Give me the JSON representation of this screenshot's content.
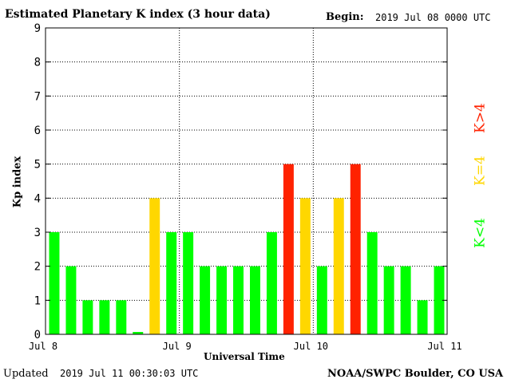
{
  "header": {
    "title": "Estimated Planetary K index (3 hour data)",
    "begin_label": "Begin:",
    "begin_value": "2019 Jul 08 0000 UTC"
  },
  "footer": {
    "updated_label": "Updated",
    "updated_value": "2019 Jul 11 00:30:03 UTC",
    "credit": "NOAA/SWPC Boulder, CO USA"
  },
  "legend": {
    "low": "K<4",
    "mid": "K=4",
    "high": "K>4"
  },
  "colors": {
    "low": "#00ff00",
    "mid": "#ffd700",
    "high": "#ff2200"
  },
  "chart_data": {
    "type": "bar",
    "title": "Estimated Planetary K index (3 hour data)",
    "xlabel": "Universal Time",
    "ylabel": "Kp index",
    "ylim": [
      0,
      9
    ],
    "yticks": [
      "0",
      "1",
      "2",
      "3",
      "4",
      "5",
      "6",
      "7",
      "8",
      "9"
    ],
    "xticks": [
      "Jul 8",
      "Jul 9",
      "Jul 10",
      "Jul 11"
    ],
    "grid": true,
    "values": [
      3,
      2,
      1,
      1,
      1,
      0,
      4,
      3,
      3,
      2,
      2,
      2,
      2,
      3,
      5,
      4,
      2,
      4,
      5,
      3,
      2,
      2,
      1,
      2
    ]
  }
}
